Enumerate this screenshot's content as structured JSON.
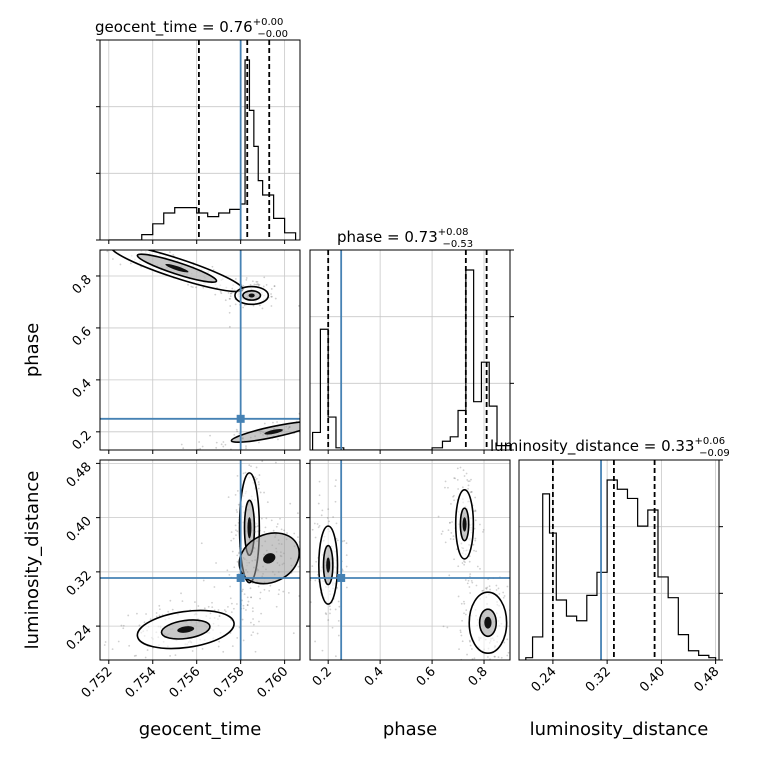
{
  "chart_data": {
    "type": "corner",
    "parameters": [
      "geocent_time",
      "phase",
      "luminosity_distance"
    ],
    "truth_color": "#4682b4",
    "grid": true,
    "titles": [
      {
        "param": "geocent_time",
        "name": "geocent_time",
        "value": "0.76",
        "plus": "+0.00",
        "minus": "−0.00"
      },
      {
        "param": "phase",
        "name": "phase",
        "value": "0.73",
        "plus": "+0.08",
        "minus": "−0.53"
      },
      {
        "param": "luminosity_distance",
        "name": "luminosity_distance",
        "value": "0.33",
        "plus": "+0.06",
        "minus": "−0.09"
      }
    ],
    "axes": {
      "geocent_time": {
        "range": [
          0.7516,
          0.7607
        ],
        "ticks": [
          0.752,
          0.754,
          0.756,
          0.758,
          0.76
        ],
        "tick_labels": [
          "0.752",
          "0.754",
          "0.756",
          "0.758",
          "0.760"
        ]
      },
      "phase": {
        "range": [
          0.13,
          0.9
        ],
        "ticks": [
          0.2,
          0.4,
          0.6,
          0.8
        ],
        "tick_labels": [
          "0.2",
          "0.4",
          "0.6",
          "0.8"
        ]
      },
      "luminosity_distance": {
        "range": [
          0.19,
          0.485
        ],
        "ticks": [
          0.24,
          0.32,
          0.4,
          0.48
        ],
        "tick_labels": [
          "0.24",
          "0.32",
          "0.40",
          "0.48"
        ]
      }
    },
    "truths": {
      "geocent_time": 0.758,
      "phase": 0.25,
      "luminosity_distance": 0.311
    },
    "quantiles": {
      "geocent_time": [
        0.7561,
        0.7583,
        0.7593
      ],
      "phase": [
        0.2,
        0.73,
        0.81
      ],
      "luminosity_distance": [
        0.24,
        0.33,
        0.39
      ]
    },
    "histograms": {
      "geocent_time": {
        "edges": [
          0.752,
          0.7525,
          0.753,
          0.7535,
          0.754,
          0.7545,
          0.755,
          0.7555,
          0.756,
          0.7565,
          0.757,
          0.7575,
          0.758,
          0.7582,
          0.7584,
          0.7586,
          0.7588,
          0.759,
          0.7595,
          0.76,
          0.7605
        ],
        "counts": [
          0,
          0,
          0,
          0.03,
          0.09,
          0.15,
          0.18,
          0.18,
          0.15,
          0.13,
          0.15,
          0.17,
          0.2,
          1.0,
          0.72,
          0.52,
          0.33,
          0.25,
          0.12,
          0.04
        ]
      },
      "phase": {
        "edges": [
          0.14,
          0.17,
          0.2,
          0.23,
          0.26,
          0.3,
          0.4,
          0.5,
          0.6,
          0.64,
          0.67,
          0.7,
          0.73,
          0.76,
          0.79,
          0.82,
          0.85,
          0.9
        ],
        "counts": [
          0.08,
          0.55,
          0.15,
          0.01,
          0,
          0,
          0,
          0,
          0.01,
          0.04,
          0.06,
          0.18,
          0.82,
          0.22,
          0.4,
          0.2,
          0.02
        ]
      },
      "luminosity_distance": {
        "edges": [
          0.2,
          0.21,
          0.225,
          0.235,
          0.245,
          0.26,
          0.275,
          0.29,
          0.305,
          0.32,
          0.335,
          0.35,
          0.365,
          0.38,
          0.395,
          0.41,
          0.425,
          0.44,
          0.455,
          0.47,
          0.48
        ],
        "counts": [
          0.01,
          0.1,
          0.72,
          0.55,
          0.26,
          0.19,
          0.17,
          0.28,
          0.38,
          0.78,
          0.74,
          0.7,
          0.58,
          0.65,
          0.36,
          0.27,
          0.11,
          0.04,
          0.02,
          0.01
        ]
      }
    },
    "joint_blobs": [
      {
        "x": "geocent_time",
        "y": "phase",
        "cx": 0.7551,
        "cy": 0.83,
        "sx": 0.0015,
        "sy": 0.045,
        "rho": -0.9,
        "n": 140,
        "levels": [
          1.2,
          2.0
        ]
      },
      {
        "x": "geocent_time",
        "y": "phase",
        "cx": 0.7585,
        "cy": 0.725,
        "sx": 0.0004,
        "sy": 0.018,
        "rho": 0.0,
        "n": 90,
        "levels": [
          1.0,
          1.9
        ]
      },
      {
        "x": "geocent_time",
        "y": "phase",
        "cx": 0.7595,
        "cy": 0.2,
        "sx": 0.0012,
        "sy": 0.025,
        "rho": 0.85,
        "n": 110,
        "levels": [
          1.6
        ]
      },
      {
        "x": "geocent_time",
        "y": "luminosity_distance",
        "cx": 0.7555,
        "cy": 0.235,
        "sx": 0.0011,
        "sy": 0.014,
        "rho": 0.3,
        "n": 160,
        "levels": [
          1.0,
          2.0
        ]
      },
      {
        "x": "geocent_time",
        "y": "luminosity_distance",
        "cx": 0.7584,
        "cy": 0.385,
        "sx": 0.00025,
        "sy": 0.045,
        "rho": 0.0,
        "n": 160,
        "levels": [
          0.9,
          1.8
        ]
      },
      {
        "x": "geocent_time",
        "y": "luminosity_distance",
        "cx": 0.7593,
        "cy": 0.34,
        "sx": 0.0008,
        "sy": 0.022,
        "rho": 0.2,
        "n": 110,
        "levels": [
          1.7
        ]
      },
      {
        "x": "phase",
        "y": "luminosity_distance",
        "cx": 0.2,
        "cy": 0.33,
        "sx": 0.02,
        "sy": 0.032,
        "rho": 0.0,
        "n": 130,
        "levels": [
          0.9,
          1.8
        ]
      },
      {
        "x": "phase",
        "y": "luminosity_distance",
        "cx": 0.725,
        "cy": 0.39,
        "sx": 0.02,
        "sy": 0.03,
        "rho": 0.0,
        "n": 130,
        "levels": [
          0.8,
          1.7
        ]
      },
      {
        "x": "phase",
        "y": "luminosity_distance",
        "cx": 0.815,
        "cy": 0.245,
        "sx": 0.04,
        "sy": 0.025,
        "rho": 0.0,
        "n": 130,
        "levels": [
          0.8,
          1.8
        ]
      }
    ]
  }
}
